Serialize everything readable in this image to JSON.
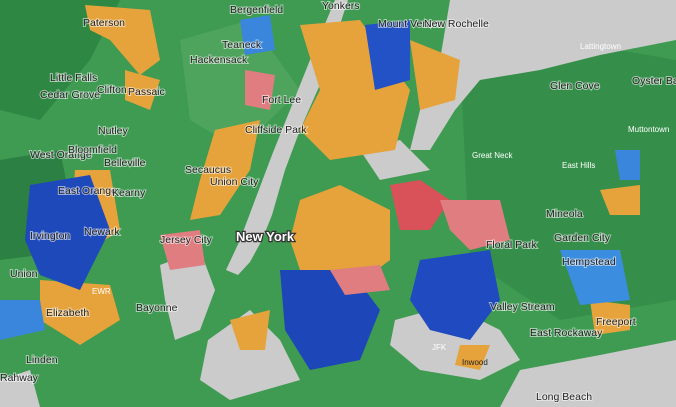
{
  "places": [
    "Paterson",
    "Bergenfield",
    "Yonkers",
    "Mount Vernon",
    "New Rochelle",
    "Lattingtown",
    "Oyster Bay",
    "Teaneck",
    "Hackensack",
    "Little Falls",
    "Cedar Grove",
    "Clifton",
    "Passaic",
    "Fort Lee",
    "Glen Cove",
    "Nutley",
    "Cliffside Park",
    "West Orange",
    "Bloomfield",
    "Belleville",
    "Secaucus",
    "Union City",
    "East Orange",
    "Kearny",
    "Muttontown",
    "Great Neck",
    "East Hills",
    "Irvington",
    "Newark",
    "Jersey City",
    "Mineola",
    "Garden City",
    "Floral Park",
    "Union",
    "Hempstead",
    "Elizabeth",
    "Bayonne",
    "Valley Stream",
    "Freeport",
    "East Rockaway",
    "Linden",
    "Rahway",
    "Long Beach",
    "Inwood"
  ],
  "city": "New York",
  "airports": [
    "EWR",
    "JFK"
  ]
}
